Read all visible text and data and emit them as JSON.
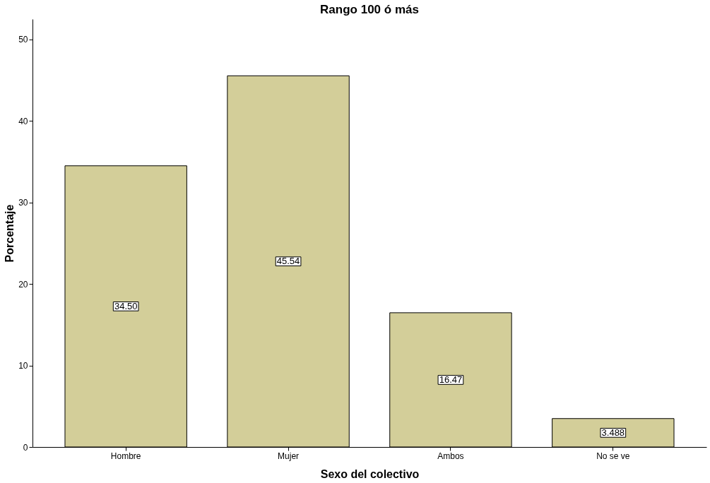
{
  "chart_data": {
    "type": "bar",
    "title": "Rango 100 ó más",
    "xlabel": "Sexo del colectivo",
    "ylabel": "Porcentaje",
    "categories": [
      "Hombre",
      "Mujer",
      "Ambos",
      "No se ve"
    ],
    "values": [
      34.5,
      45.54,
      16.47,
      3.488
    ],
    "value_labels": [
      "34.50",
      "45.54",
      "16.47",
      "3.488"
    ],
    "color": "#d3ce99",
    "ylim": [
      0,
      52.5
    ],
    "yticks": [
      0,
      10,
      20,
      30,
      40,
      50
    ],
    "grid": false
  }
}
